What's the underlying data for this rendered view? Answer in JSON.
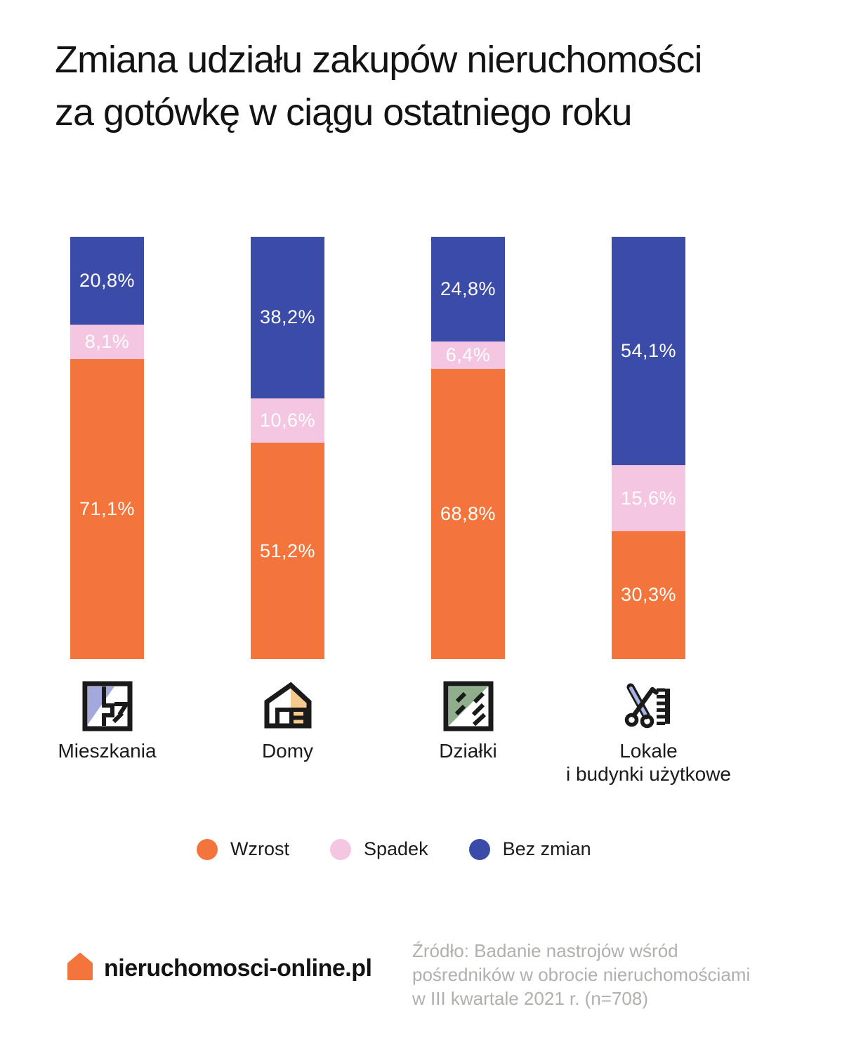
{
  "title": {
    "line1": "Zmiana udziału zakupów nieruchomości",
    "line2": "za gotówkę w ciągu ostatniego roku"
  },
  "chart_data": {
    "type": "bar",
    "stacked": true,
    "orientation": "vertical",
    "value_unit": "%",
    "ylim": [
      0,
      100
    ],
    "grid": false,
    "legend_position": "bottom",
    "categories": [
      "Mieszkania",
      "Domy",
      "Działki",
      "Lokale i budynki użytkowe"
    ],
    "series": [
      {
        "name": "Wzrost",
        "color": "#F4753C",
        "values": [
          71.1,
          51.2,
          68.8,
          30.3
        ],
        "labels": [
          "71,1%",
          "51,2%",
          "68,8%",
          "30,3%"
        ]
      },
      {
        "name": "Spadek",
        "color": "#F4C6E2",
        "values": [
          8.1,
          10.6,
          6.4,
          15.6
        ],
        "labels": [
          "8,1%",
          "10,6%",
          "6,4%",
          "15,6%"
        ]
      },
      {
        "name": "Bez zmian",
        "color": "#3B4CA8",
        "values": [
          20.8,
          38.2,
          24.8,
          54.1
        ],
        "labels": [
          "20,8%",
          "38,2%",
          "24,8%",
          "54,1%"
        ]
      }
    ],
    "stack_order_top_to_bottom": [
      "Bez zmian",
      "Spadek",
      "Wzrost"
    ]
  },
  "category_labels": [
    {
      "lines": [
        "Mieszkania"
      ],
      "icon": "apartment-floorplan-icon"
    },
    {
      "lines": [
        "Domy"
      ],
      "icon": "house-icon"
    },
    {
      "lines": [
        "Działki"
      ],
      "icon": "land-plot-icon"
    },
    {
      "lines": [
        "Lokale",
        "i budynki użytkowe"
      ],
      "icon": "scissors-comb-icon"
    }
  ],
  "footer": {
    "brand_name": "nieruchomosci-online.pl",
    "brand_icon": "house-logo-icon",
    "brand_color": "#F4753C",
    "source_lines": [
      "Źródło: Badanie nastrojów wśród",
      "pośredników w obrocie nieruchomościami",
      "w III kwartale 2021 r. (n=708)"
    ]
  },
  "colors": {
    "background": "#FFFFFF",
    "text_primary": "#131313",
    "text_muted": "#B2B0AC",
    "bar_value_text": "#FFFFFF",
    "icon_outline": "#1A1A1A",
    "icon_fill_purple": "#A3A9DC",
    "icon_fill_orange": "#F6C98E",
    "icon_fill_green": "#8FAF8C"
  }
}
